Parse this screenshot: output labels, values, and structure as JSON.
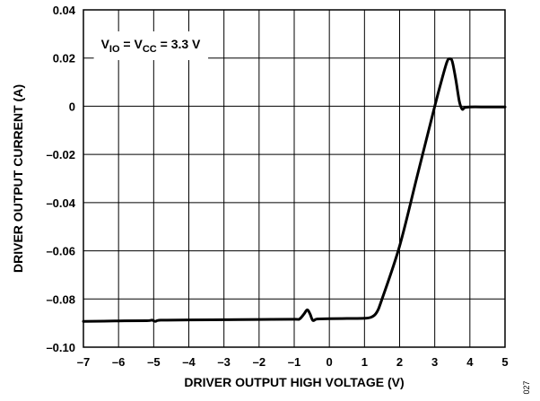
{
  "chart_data": {
    "type": "line",
    "title": "",
    "xlabel": "DRIVER OUTPUT HIGH VOLTAGE (V)",
    "ylabel": "DRIVER OUTPUT CURRENT (A)",
    "xlim": [
      -7,
      5
    ],
    "ylim": [
      -0.1,
      0.04
    ],
    "xticks": [
      -7,
      -6,
      -5,
      -4,
      -3,
      -2,
      -1,
      0,
      1,
      2,
      3,
      4,
      5
    ],
    "yticks": [
      -0.1,
      -0.08,
      -0.06,
      -0.04,
      -0.02,
      0,
      0.02,
      0.04
    ],
    "xtick_labels": [
      "–7",
      "–6",
      "–5",
      "–4",
      "–3",
      "–2",
      "–1",
      "0",
      "1",
      "2",
      "3",
      "4",
      "5"
    ],
    "ytick_labels": [
      "–0.10",
      "–0.08",
      "–0.06",
      "–0.04",
      "–0.02",
      "0",
      "0.02",
      "0.04"
    ],
    "grid": true,
    "annotation": {
      "parts": [
        {
          "text": "V",
          "sub": false
        },
        {
          "text": "IO",
          "sub": true
        },
        {
          "text": " = V",
          "sub": false
        },
        {
          "text": "CC",
          "sub": true
        },
        {
          "text": " = 3.3 V",
          "sub": false
        }
      ],
      "x": -6.5,
      "y": 0.024
    },
    "series": [
      {
        "color": "#000000",
        "x": [
          -7.0,
          -6.0,
          -5.2,
          -5.05,
          -4.95,
          -4.8,
          -4.0,
          -3.0,
          -2.0,
          -1.0,
          -0.85,
          -0.72,
          -0.63,
          -0.55,
          -0.47,
          -0.35,
          0.0,
          0.5,
          1.0,
          1.2,
          1.35,
          1.5,
          2.0,
          2.5,
          3.0,
          3.2,
          3.35,
          3.43,
          3.5,
          3.6,
          3.7,
          3.78,
          3.85,
          4.0,
          4.5,
          5.0
        ],
        "y": [
          -0.0893,
          -0.0891,
          -0.089,
          -0.0888,
          -0.0893,
          -0.0888,
          -0.0887,
          -0.0886,
          -0.0885,
          -0.0884,
          -0.0883,
          -0.0862,
          -0.0845,
          -0.0862,
          -0.0889,
          -0.0883,
          -0.0882,
          -0.0881,
          -0.088,
          -0.0875,
          -0.0855,
          -0.08,
          -0.058,
          -0.029,
          0.0,
          0.011,
          0.0185,
          0.0197,
          0.0185,
          0.011,
          0.002,
          -0.0012,
          -0.0006,
          -0.0003,
          -0.0003,
          -0.0003
        ]
      }
    ]
  },
  "figure_id": "027"
}
